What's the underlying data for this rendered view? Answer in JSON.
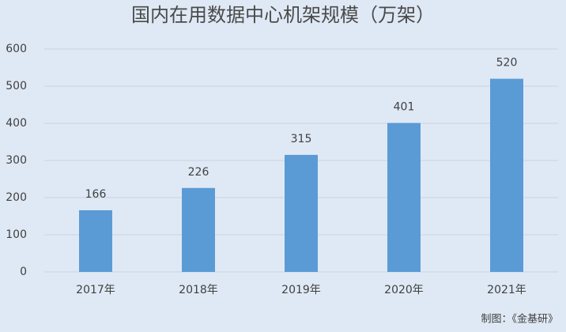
{
  "chart_data": {
    "type": "bar",
    "title": "国内在用数据中心机架规模（万架）",
    "categories": [
      "2017年",
      "2018年",
      "2019年",
      "2020年",
      "2021年"
    ],
    "values": [
      166,
      226,
      315,
      401,
      520
    ],
    "color": "#5b9bd5",
    "ylim": [
      0,
      600
    ],
    "yticks": [
      0,
      100,
      200,
      300,
      400,
      500,
      600
    ],
    "grid": true,
    "note": "制图：《金基研》"
  }
}
